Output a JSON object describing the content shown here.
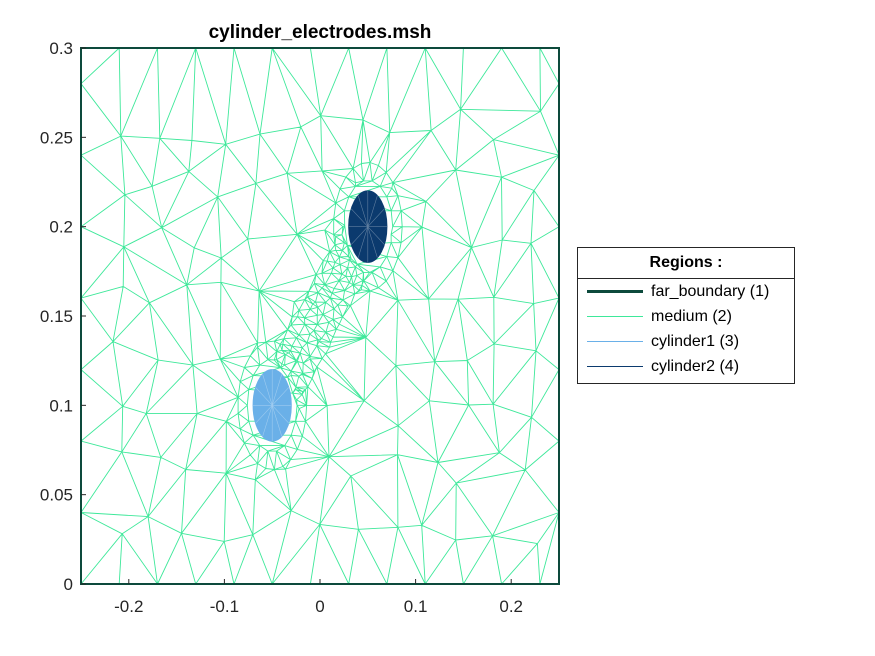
{
  "chart_data": {
    "type": "mesh",
    "title": "cylinder_electrodes.msh",
    "xlabel": "",
    "ylabel": "",
    "xlim": [
      -0.25,
      0.25
    ],
    "ylim": [
      0,
      0.3
    ],
    "x_ticks": [
      -0.2,
      -0.1,
      0,
      0.1,
      0.2
    ],
    "x_tick_labels": [
      "-0.2",
      "-0.1",
      "0",
      "0.1",
      "0.2"
    ],
    "y_ticks": [
      0,
      0.05,
      0.1,
      0.15,
      0.2,
      0.25,
      0.3
    ],
    "y_tick_labels": [
      "0",
      "0.05",
      "0.1",
      "0.15",
      "0.2",
      "0.25",
      "0.3"
    ],
    "grid": false,
    "legend_position": "right",
    "legend": {
      "title": "Regions :",
      "entries": [
        {
          "label": "far_boundary (1)",
          "color": "#0d4a3c",
          "style": "thick"
        },
        {
          "label": "medium (2)",
          "color": "#3ee89a",
          "style": "thin"
        },
        {
          "label": "cylinder1 (3)",
          "color": "#6ab0e8",
          "style": "thin"
        },
        {
          "label": "cylinder2 (4)",
          "color": "#0b3a6e",
          "style": "thin"
        }
      ]
    },
    "regions": [
      {
        "name": "far_boundary",
        "id": 1,
        "shape": "rectangle",
        "x": [
          -0.25,
          0.25
        ],
        "y": [
          0,
          0.3
        ],
        "color": "#0d4a3c"
      },
      {
        "name": "medium",
        "id": 2,
        "shape": "triangular mesh",
        "color": "#3ee89a"
      },
      {
        "name": "cylinder1",
        "id": 3,
        "shape": "circle",
        "center": [
          -0.05,
          0.1
        ],
        "radius": 0.02,
        "color": "#6ab0e8"
      },
      {
        "name": "cylinder2",
        "id": 4,
        "shape": "circle",
        "center": [
          0.05,
          0.2
        ],
        "radius": 0.02,
        "color": "#0b3a6e"
      }
    ]
  }
}
